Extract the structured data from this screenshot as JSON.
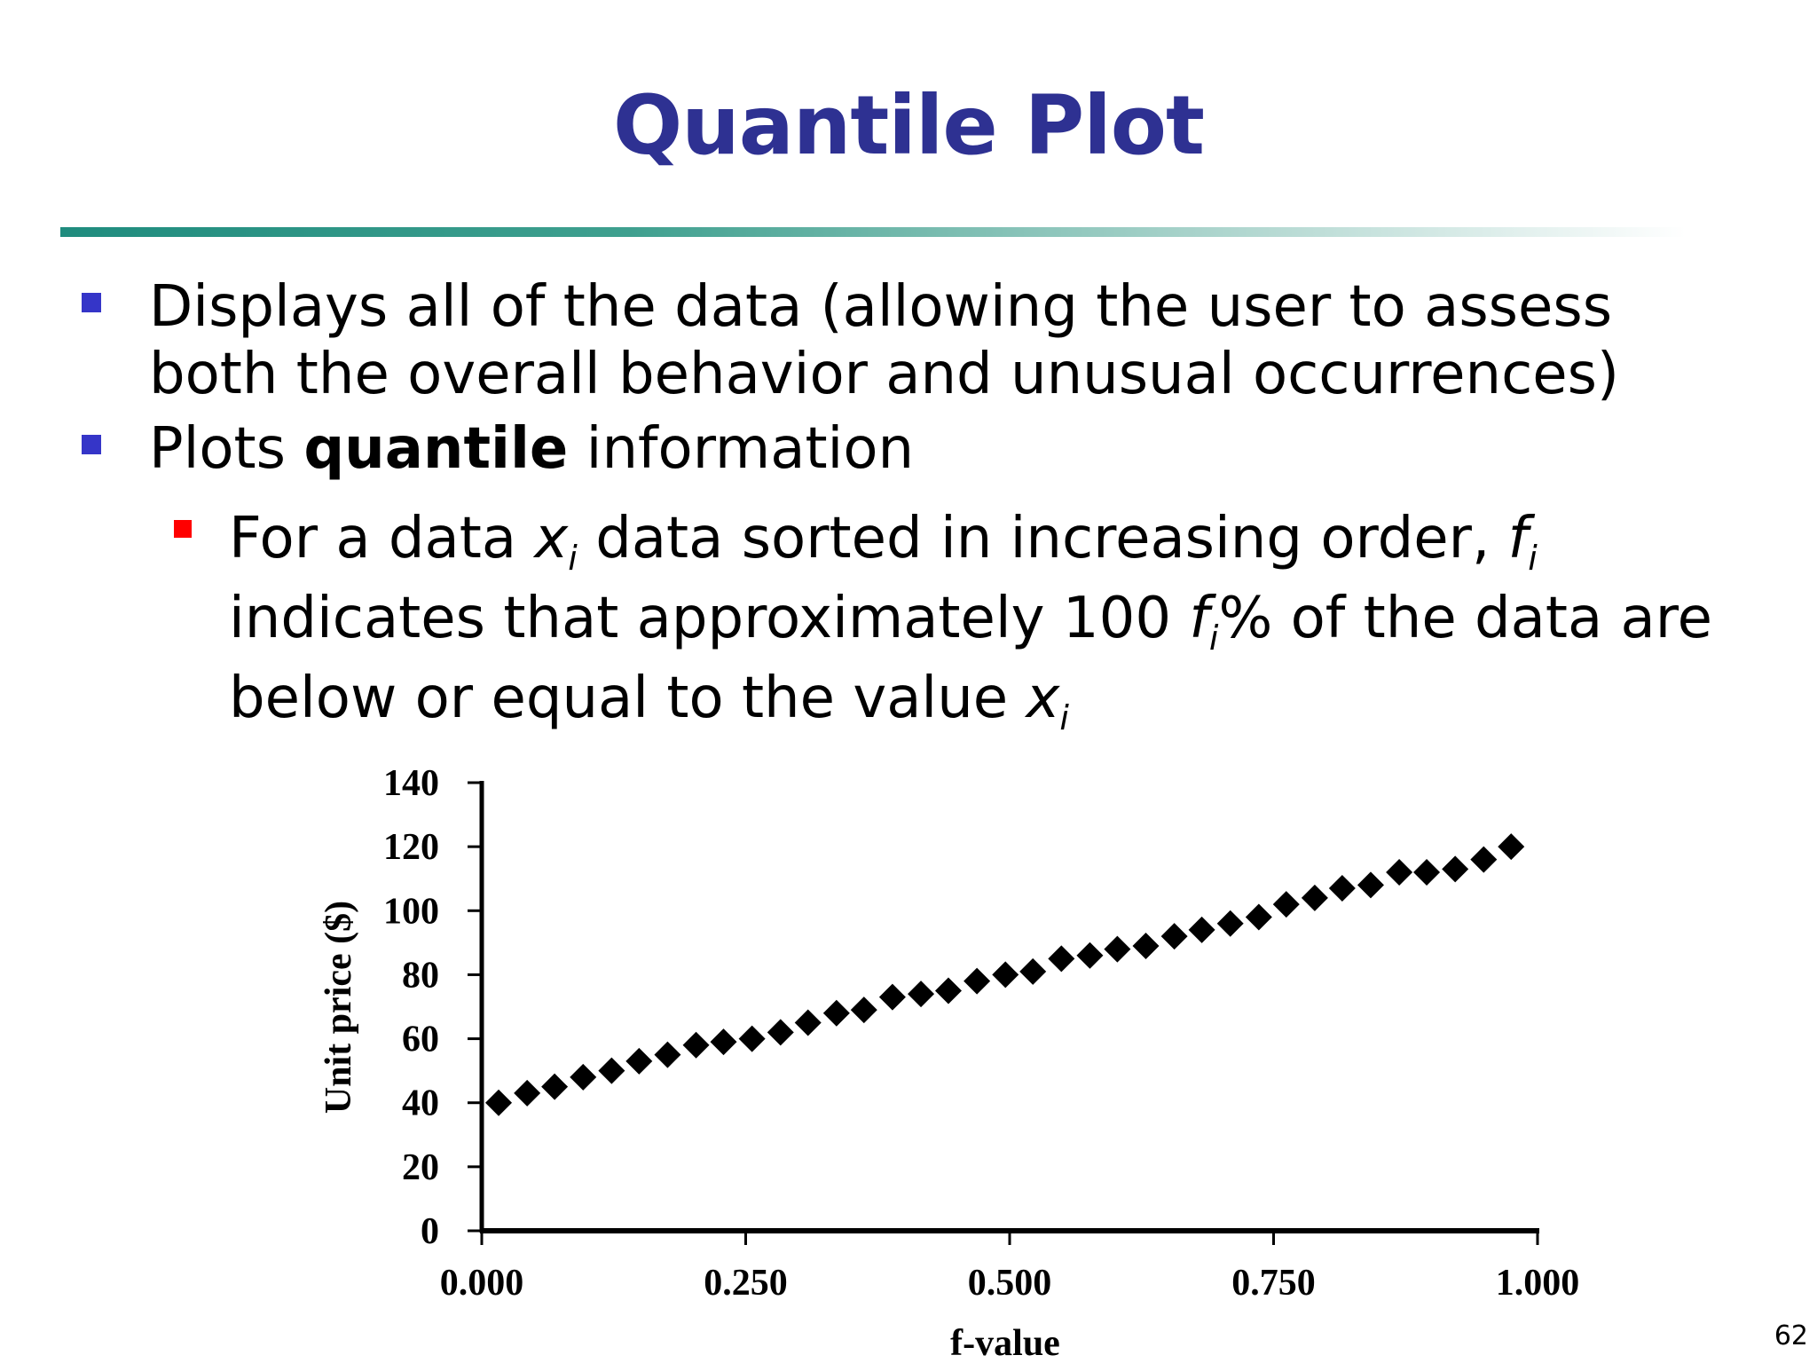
{
  "slide": {
    "title": "Quantile Plot",
    "page_number": "62",
    "bullets": [
      {
        "line1": "Displays all of the data (allowing the user to assess",
        "line2": "both the overall behavior and unusual occurrences)"
      },
      {
        "pre": "Plots ",
        "bold": "quantile",
        "post": " information"
      }
    ],
    "sub_bullet": {
      "p1": "For a data ",
      "x": "x",
      "i": "i",
      "p2": " data sorted in increasing order, ",
      "f": "f",
      "line2_pre": "indicates that approximately 100 ",
      "line2_post": "% of the data are",
      "line3_pre": "below or equal to the value "
    },
    "colors": {
      "title": "#2e3192",
      "bullet_level1": "#3535c8",
      "bullet_level2": "#ff0000",
      "rule": "#1f8c7e"
    }
  },
  "chart_data": {
    "type": "scatter",
    "title": "",
    "xlabel": "f-value",
    "ylabel": "Unit price ($)",
    "xlim": [
      0,
      1
    ],
    "ylim": [
      0,
      140
    ],
    "xticks": [
      "0.000",
      "0.250",
      "0.500",
      "0.750",
      "1.000"
    ],
    "yticks": [
      "0",
      "20",
      "40",
      "60",
      "80",
      "100",
      "120",
      "140"
    ],
    "marker": "diamond",
    "marker_color": "#000000",
    "grid": false,
    "series": [
      {
        "x": [
          0.016,
          0.043,
          0.069,
          0.096,
          0.123,
          0.149,
          0.176,
          0.203,
          0.229,
          0.256,
          0.283,
          0.309,
          0.336,
          0.362,
          0.389,
          0.416,
          0.442,
          0.469,
          0.496,
          0.522,
          0.549,
          0.576,
          0.602,
          0.629,
          0.656,
          0.682,
          0.709,
          0.736,
          0.762,
          0.789,
          0.815,
          0.842,
          0.869,
          0.895,
          0.922,
          0.949,
          0.975
        ],
        "y": [
          40,
          43,
          45,
          48,
          50,
          53,
          55,
          58,
          59,
          60,
          62,
          65,
          68,
          69,
          73,
          74,
          75,
          78,
          80,
          81,
          85,
          86,
          88,
          89,
          92,
          94,
          96,
          98,
          102,
          104,
          107,
          108,
          112,
          112,
          113,
          116,
          120
        ]
      }
    ]
  }
}
